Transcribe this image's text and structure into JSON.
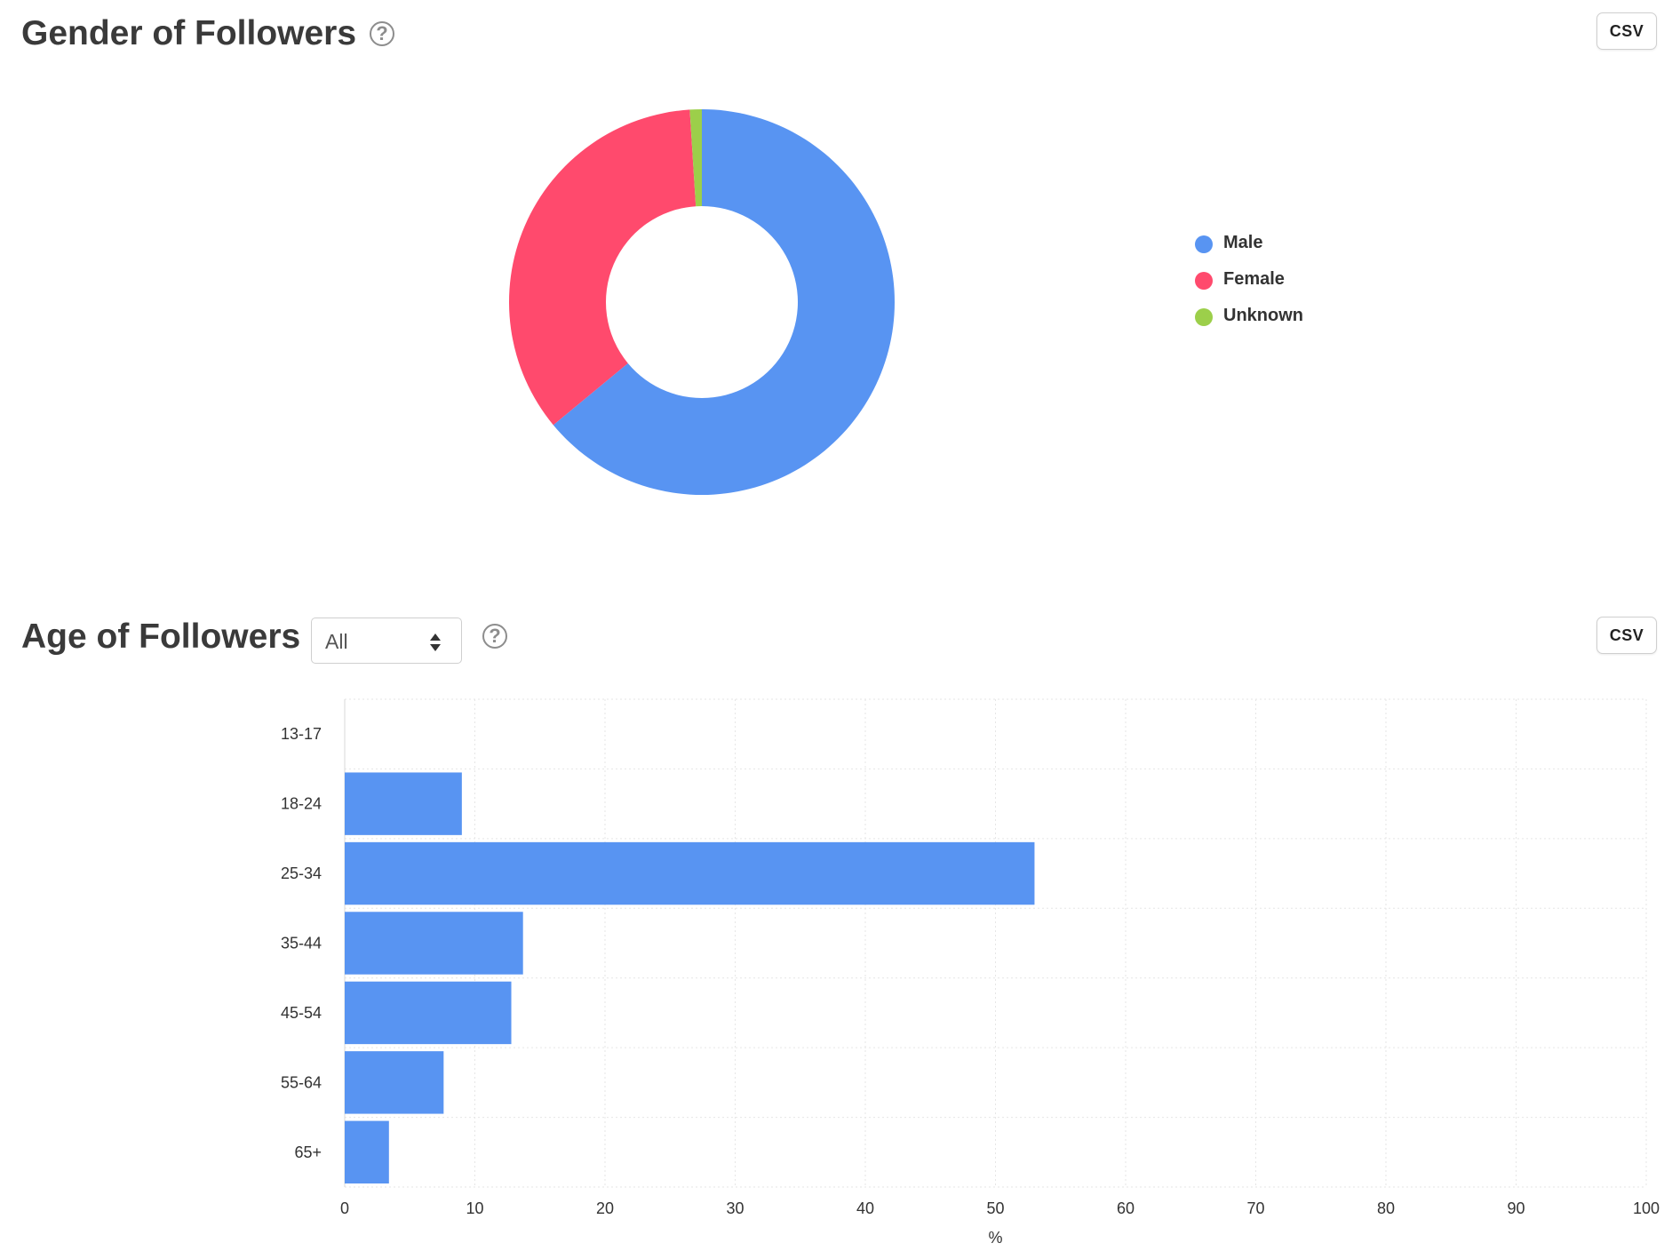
{
  "gender_section": {
    "title": "Gender of Followers",
    "help_icon": "question-circle-icon",
    "csv_label": "CSV"
  },
  "age_section": {
    "title": "Age of Followers",
    "filter": {
      "selected": "All"
    },
    "help_icon": "question-circle-icon",
    "csv_label": "CSV"
  },
  "chart_data": [
    {
      "type": "pie",
      "variant": "donut",
      "title": "Gender of Followers",
      "labels": [
        "Male",
        "Female",
        "Unknown"
      ],
      "values": [
        64,
        35,
        1
      ],
      "colors": [
        "#5894f2",
        "#ff4a6d",
        "#9ccf4a"
      ],
      "legend_position": "right"
    },
    {
      "type": "bar",
      "orientation": "horizontal",
      "title": "Age of Followers",
      "categories": [
        "13-17",
        "18-24",
        "25-34",
        "35-44",
        "45-54",
        "55-64",
        "65+"
      ],
      "values": [
        0,
        9,
        53,
        13.7,
        12.8,
        7.6,
        3.4
      ],
      "xlabel": "%",
      "xlim": [
        0,
        100
      ],
      "xticks": [
        0,
        10,
        20,
        30,
        40,
        50,
        60,
        70,
        80,
        90,
        100
      ],
      "color": "#5894f2",
      "grid": true
    }
  ]
}
